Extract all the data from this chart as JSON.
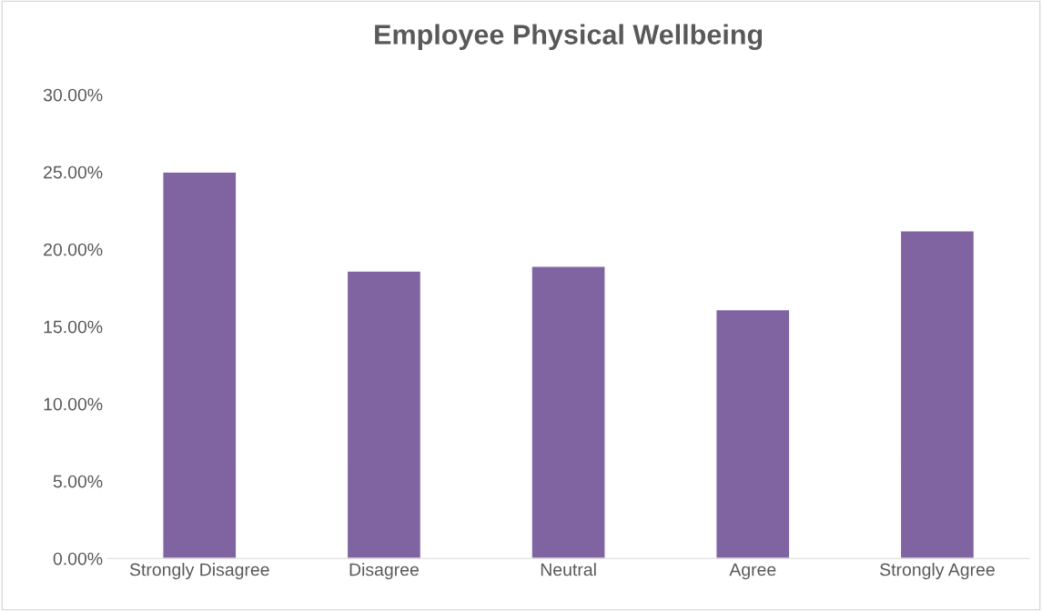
{
  "chart_data": {
    "type": "bar",
    "title": "Employee Physical Wellbeing",
    "categories": [
      "Strongly Disagree",
      "Disagree",
      "Neutral",
      "Agree",
      "Strongly Agree"
    ],
    "values": [
      25.0,
      18.6,
      18.9,
      16.1,
      21.2
    ],
    "color": "#8064a2",
    "ylim": [
      0,
      30
    ],
    "yticks": [
      {
        "value": 0,
        "label": "0.00%"
      },
      {
        "value": 5,
        "label": "5.00%"
      },
      {
        "value": 10,
        "label": "10.00%"
      },
      {
        "value": 15,
        "label": "15.00%"
      },
      {
        "value": 20,
        "label": "20.00%"
      },
      {
        "value": 25,
        "label": "25.00%"
      },
      {
        "value": 30,
        "label": "30.00%"
      }
    ],
    "grid": false,
    "legend": false
  }
}
